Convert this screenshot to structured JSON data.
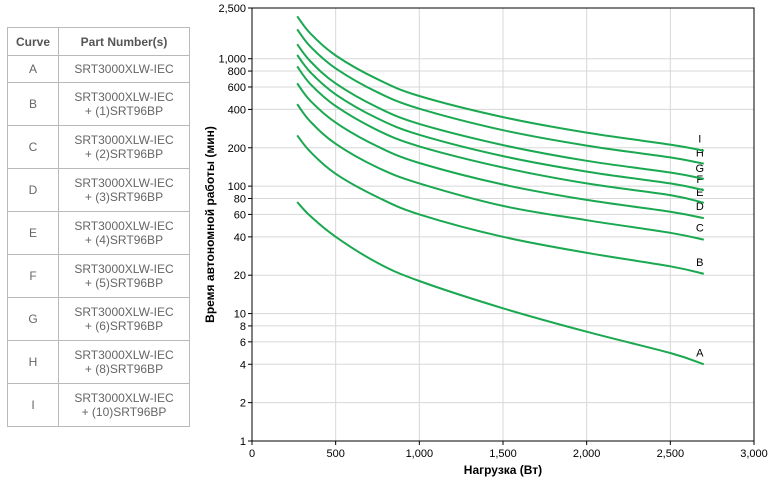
{
  "legend_table": {
    "headers": {
      "curve": "Curve",
      "part": "Part Number(s)"
    },
    "rows": [
      {
        "curve": "A",
        "part1": "SRT3000XLW-IEC",
        "part2": ""
      },
      {
        "curve": "B",
        "part1": "SRT3000XLW-IEC",
        "part2": "+ (1)SRT96BP"
      },
      {
        "curve": "C",
        "part1": "SRT3000XLW-IEC",
        "part2": "+ (2)SRT96BP"
      },
      {
        "curve": "D",
        "part1": "SRT3000XLW-IEC",
        "part2": "+ (3)SRT96BP"
      },
      {
        "curve": "E",
        "part1": "SRT3000XLW-IEC",
        "part2": "+ (4)SRT96BP"
      },
      {
        "curve": "F",
        "part1": "SRT3000XLW-IEC",
        "part2": "+ (5)SRT96BP"
      },
      {
        "curve": "G",
        "part1": "SRT3000XLW-IEC",
        "part2": "+ (6)SRT96BP"
      },
      {
        "curve": "H",
        "part1": "SRT3000XLW-IEC",
        "part2": "+ (8)SRT96BP"
      },
      {
        "curve": "I",
        "part1": "SRT3000XLW-IEC",
        "part2": "+ (10)SRT96BP"
      }
    ]
  },
  "chart_data": {
    "type": "line",
    "xlabel": "Нагрузка (Вт)",
    "ylabel": "Время автономной работы (мин)",
    "xlim": [
      0,
      3000
    ],
    "ylim": [
      1,
      2500
    ],
    "yscale": "log",
    "x_ticks": [
      0,
      500,
      1000,
      1500,
      2000,
      2500,
      3000
    ],
    "x_tick_labels": [
      "0",
      "500",
      "1,000",
      "1,500",
      "2,000",
      "2,500",
      "3,000"
    ],
    "y_ticks": [
      1,
      2,
      4,
      6,
      8,
      10,
      20,
      40,
      60,
      80,
      100,
      200,
      400,
      600,
      800,
      1000,
      2500
    ],
    "y_tick_labels": [
      "1",
      "2",
      "4",
      "6",
      "8",
      "10",
      "20",
      "40",
      "60",
      "80",
      "100",
      "200",
      "400",
      "600",
      "800",
      "1,000",
      "2,500"
    ],
    "line_color": "#1aa850",
    "grid_color": "#d8d8d8",
    "series": [
      {
        "name": "A",
        "x": [
          270,
          350,
          500,
          750,
          1000,
          1500,
          2000,
          2500,
          2700
        ],
        "y": [
          75,
          58,
          40,
          25,
          18,
          11,
          7.2,
          4.9,
          4.0
        ]
      },
      {
        "name": "B",
        "x": [
          270,
          350,
          500,
          750,
          1000,
          1500,
          2000,
          2500,
          2700
        ],
        "y": [
          250,
          185,
          125,
          82,
          60,
          40,
          30,
          23.5,
          20.5
        ]
      },
      {
        "name": "C",
        "x": [
          270,
          350,
          500,
          750,
          1000,
          1500,
          2000,
          2500,
          2700
        ],
        "y": [
          440,
          320,
          215,
          140,
          105,
          70,
          54,
          43,
          38
        ]
      },
      {
        "name": "D",
        "x": [
          270,
          350,
          500,
          750,
          1000,
          1500,
          2000,
          2500,
          2700
        ],
        "y": [
          640,
          465,
          315,
          205,
          152,
          103,
          78,
          63,
          56
        ]
      },
      {
        "name": "E",
        "x": [
          270,
          350,
          500,
          750,
          1000,
          1500,
          2000,
          2500,
          2700
        ],
        "y": [
          870,
          630,
          425,
          275,
          205,
          140,
          105,
          85,
          74
        ]
      },
      {
        "name": "F",
        "x": [
          270,
          350,
          500,
          750,
          1000,
          1500,
          2000,
          2500,
          2700
        ],
        "y": [
          1070,
          780,
          525,
          340,
          253,
          172,
          130,
          105,
          93
        ]
      },
      {
        "name": "G",
        "x": [
          270,
          350,
          500,
          750,
          1000,
          1500,
          2000,
          2500,
          2700
        ],
        "y": [
          1300,
          950,
          640,
          415,
          308,
          210,
          158,
          128,
          114
        ]
      },
      {
        "name": "H",
        "x": [
          270,
          350,
          500,
          750,
          1000,
          1500,
          2000,
          2500,
          2700
        ],
        "y": [
          1700,
          1240,
          840,
          545,
          405,
          275,
          208,
          168,
          150
        ]
      },
      {
        "name": "I",
        "x": [
          270,
          350,
          500,
          750,
          1000,
          1500,
          2000,
          2500,
          2700
        ],
        "y": [
          2150,
          1570,
          1060,
          690,
          510,
          348,
          263,
          212,
          190
        ]
      }
    ]
  }
}
